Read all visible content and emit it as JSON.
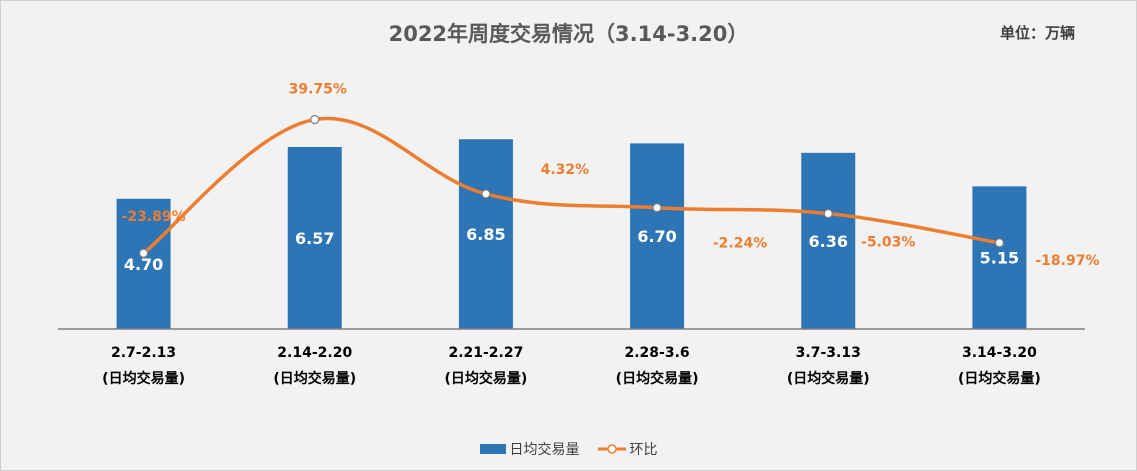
{
  "chart_data": {
    "type": "bar+line",
    "title": "2022年周度交易情况（3.14-3.20）",
    "unit_label": "单位：万辆",
    "categories": [
      {
        "period": "2.7-2.13",
        "note": "(日均交易量)"
      },
      {
        "period": "2.14-2.20",
        "note": "(日均交易量)"
      },
      {
        "period": "2.21-2.27",
        "note": "(日均交易量)"
      },
      {
        "period": "2.28-3.6",
        "note": "(日均交易量)"
      },
      {
        "period": "3.7-3.13",
        "note": "(日均交易量)"
      },
      {
        "period": "3.14-3.20",
        "note": "(日均交易量)"
      }
    ],
    "series": [
      {
        "name": "日均交易量",
        "kind": "bar",
        "color": "#2e75b6",
        "values": [
          4.7,
          6.57,
          6.85,
          6.7,
          6.36,
          5.15
        ],
        "labels": [
          "4.70",
          "6.57",
          "6.85",
          "6.70",
          "6.36",
          "5.15"
        ],
        "ylim": [
          0,
          8
        ]
      },
      {
        "name": "环比",
        "kind": "line",
        "color": "#ed7d31",
        "values": [
          -23.89,
          39.75,
          4.32,
          -2.24,
          -5.03,
          -18.97
        ],
        "labels": [
          "-23.89%",
          "39.75%",
          "4.32%",
          "-2.24%",
          "-5.03%",
          "-18.97%"
        ],
        "ylim": [
          -40,
          50
        ]
      }
    ],
    "legend_position": "bottom"
  }
}
